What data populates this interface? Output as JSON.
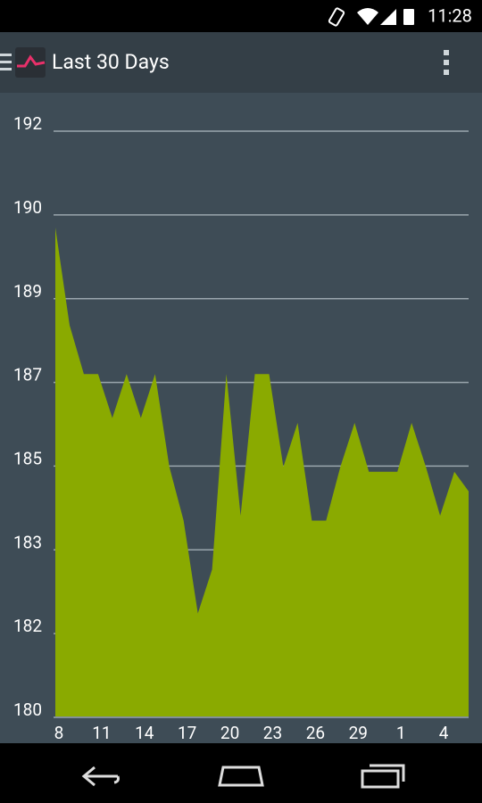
{
  "status_bar": {
    "time": "11:28"
  },
  "app_bar": {
    "title": "Last 30 Days"
  },
  "chart_data": {
    "type": "area",
    "color": "#8aaa00",
    "grid": true,
    "categories": [
      "8",
      null,
      null,
      "11",
      null,
      null,
      "14",
      null,
      null,
      "17",
      null,
      null,
      "20",
      null,
      null,
      "23",
      null,
      null,
      "26",
      null,
      null,
      "29",
      null,
      null,
      "1",
      null,
      null,
      "4",
      null,
      null
    ],
    "values": [
      189.9,
      187.9,
      186.9,
      186.9,
      186.0,
      186.9,
      186.0,
      186.9,
      185.0,
      183.9,
      182.0,
      182.9,
      186.9,
      184.0,
      186.9,
      186.9,
      185.0,
      185.9,
      183.9,
      183.9,
      185.0,
      185.9,
      184.9,
      184.9,
      184.9,
      185.9,
      185.0,
      184.0,
      184.9,
      184.5
    ],
    "ylim": [
      180,
      192
    ],
    "yticks": [
      180,
      {
        "value": 181.714,
        "label": "182"
      },
      {
        "value": 183.429,
        "label": "183"
      },
      {
        "value": 185.143,
        "label": "185"
      },
      {
        "value": 186.857,
        "label": "187"
      },
      {
        "value": 188.571,
        "label": "189"
      },
      {
        "value": 190.286,
        "label": "190"
      },
      192
    ]
  }
}
